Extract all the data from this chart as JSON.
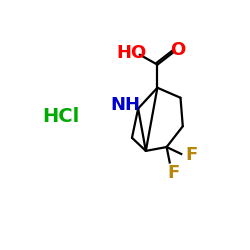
{
  "background_color": "#ffffff",
  "bond_color": "#000000",
  "atom_colors": {
    "O": "#ff0000",
    "HO": "#ff0000",
    "NH": "#0000cc",
    "F": "#b8860b",
    "HCl": "#00aa00"
  },
  "font_size": 13,
  "lw": 1.6
}
